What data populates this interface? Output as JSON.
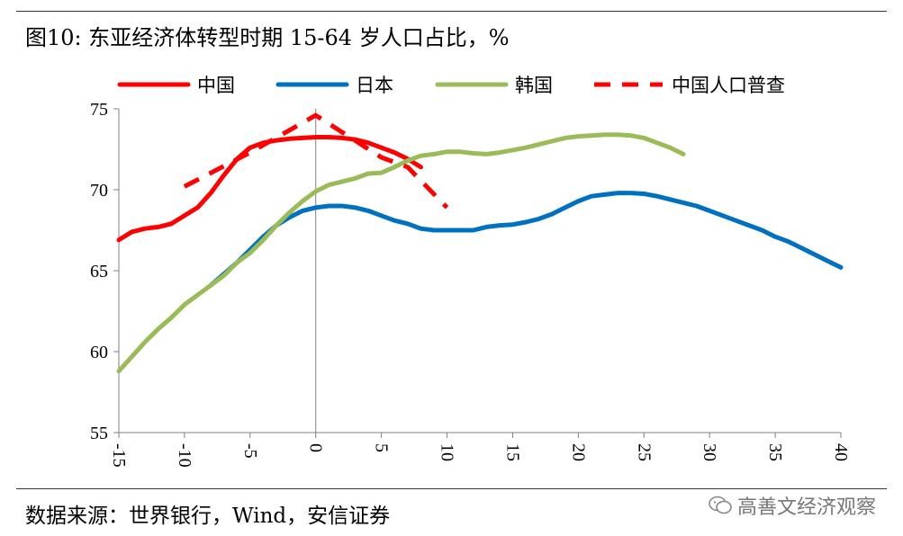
{
  "figure": {
    "title": "图10: 东亚经济体转型时期 15-64 岁人口占比，%",
    "source": "数据来源：世界银行，Wind，安信证券",
    "watermark": "高善文经济观察"
  },
  "chart_data": {
    "type": "line",
    "title": "",
    "xlabel": "",
    "ylabel": "",
    "xlim": [
      -15,
      40
    ],
    "ylim": [
      55,
      75
    ],
    "x_ticks": [
      -15,
      -10,
      -5,
      0,
      5,
      10,
      15,
      20,
      25,
      30,
      35,
      40
    ],
    "y_ticks": [
      55,
      60,
      65,
      70,
      75
    ],
    "legend_position": "top",
    "grid": false,
    "series": [
      {
        "name": "中国",
        "color": "#ff0000",
        "style": "solid",
        "points": [
          [
            -15,
            66.9
          ],
          [
            -14,
            67.4
          ],
          [
            -13,
            67.6
          ],
          [
            -12,
            67.7
          ],
          [
            -11,
            67.9
          ],
          [
            -10,
            68.4
          ],
          [
            -9,
            68.9
          ],
          [
            -8,
            69.8
          ],
          [
            -7,
            70.9
          ],
          [
            -6,
            71.9
          ],
          [
            -5,
            72.6
          ],
          [
            -4,
            72.9
          ],
          [
            -3,
            73.05
          ],
          [
            -2,
            73.15
          ],
          [
            -1,
            73.2
          ],
          [
            0,
            73.25
          ],
          [
            1,
            73.25
          ],
          [
            2,
            73.2
          ],
          [
            3,
            73.1
          ],
          [
            4,
            72.9
          ],
          [
            5,
            72.6
          ],
          [
            6,
            72.3
          ],
          [
            7,
            71.9
          ],
          [
            8,
            71.4
          ]
        ]
      },
      {
        "name": "日本",
        "color": "#0070c0",
        "style": "solid",
        "points": [
          [
            -8,
            64.1
          ],
          [
            -7,
            64.8
          ],
          [
            -6,
            65.5
          ],
          [
            -5,
            66.3
          ],
          [
            -4,
            67.1
          ],
          [
            -3,
            67.8
          ],
          [
            -2,
            68.3
          ],
          [
            -1,
            68.7
          ],
          [
            0,
            68.9
          ],
          [
            1,
            69.0
          ],
          [
            2,
            69.0
          ],
          [
            3,
            68.9
          ],
          [
            4,
            68.7
          ],
          [
            5,
            68.4
          ],
          [
            6,
            68.1
          ],
          [
            7,
            67.9
          ],
          [
            8,
            67.6
          ],
          [
            9,
            67.5
          ],
          [
            10,
            67.5
          ],
          [
            11,
            67.5
          ],
          [
            12,
            67.5
          ],
          [
            13,
            67.7
          ],
          [
            14,
            67.8
          ],
          [
            15,
            67.85
          ],
          [
            16,
            68.0
          ],
          [
            17,
            68.2
          ],
          [
            18,
            68.5
          ],
          [
            19,
            68.9
          ],
          [
            20,
            69.3
          ],
          [
            21,
            69.6
          ],
          [
            22,
            69.7
          ],
          [
            23,
            69.8
          ],
          [
            24,
            69.8
          ],
          [
            25,
            69.75
          ],
          [
            26,
            69.6
          ],
          [
            27,
            69.4
          ],
          [
            28,
            69.2
          ],
          [
            29,
            69.0
          ],
          [
            30,
            68.7
          ],
          [
            31,
            68.4
          ],
          [
            32,
            68.1
          ],
          [
            33,
            67.8
          ],
          [
            34,
            67.5
          ],
          [
            35,
            67.1
          ],
          [
            36,
            66.8
          ],
          [
            37,
            66.4
          ],
          [
            38,
            66.0
          ],
          [
            39,
            65.6
          ],
          [
            40,
            65.2
          ]
        ]
      },
      {
        "name": "韩国",
        "color": "#9bbb59",
        "style": "solid",
        "points": [
          [
            -15,
            58.8
          ],
          [
            -14,
            59.7
          ],
          [
            -13,
            60.6
          ],
          [
            -12,
            61.4
          ],
          [
            -11,
            62.1
          ],
          [
            -10,
            62.9
          ],
          [
            -9,
            63.5
          ],
          [
            -8,
            64.1
          ],
          [
            -7,
            64.7
          ],
          [
            -6,
            65.5
          ],
          [
            -5,
            66.1
          ],
          [
            -4,
            66.9
          ],
          [
            -3,
            67.8
          ],
          [
            -2,
            68.6
          ],
          [
            -1,
            69.3
          ],
          [
            0,
            69.9
          ],
          [
            1,
            70.3
          ],
          [
            2,
            70.5
          ],
          [
            3,
            70.7
          ],
          [
            4,
            71.0
          ],
          [
            5,
            71.05
          ],
          [
            6,
            71.4
          ],
          [
            7,
            71.8
          ],
          [
            8,
            72.1
          ],
          [
            9,
            72.2
          ],
          [
            10,
            72.35
          ],
          [
            11,
            72.35
          ],
          [
            12,
            72.25
          ],
          [
            13,
            72.2
          ],
          [
            14,
            72.3
          ],
          [
            15,
            72.45
          ],
          [
            16,
            72.6
          ],
          [
            17,
            72.8
          ],
          [
            18,
            73.0
          ],
          [
            19,
            73.2
          ],
          [
            20,
            73.3
          ],
          [
            21,
            73.35
          ],
          [
            22,
            73.4
          ],
          [
            23,
            73.4
          ],
          [
            24,
            73.35
          ],
          [
            25,
            73.2
          ],
          [
            26,
            72.9
          ],
          [
            27,
            72.6
          ],
          [
            28,
            72.2
          ]
        ]
      },
      {
        "name": "中国人口普查",
        "color": "#ff0000",
        "style": "dashed",
        "points": [
          [
            -10,
            70.2
          ],
          [
            -5,
            72.3
          ],
          [
            0,
            74.6
          ],
          [
            5,
            72.0
          ],
          [
            7,
            71.4
          ],
          [
            10,
            68.9
          ]
        ]
      }
    ]
  }
}
